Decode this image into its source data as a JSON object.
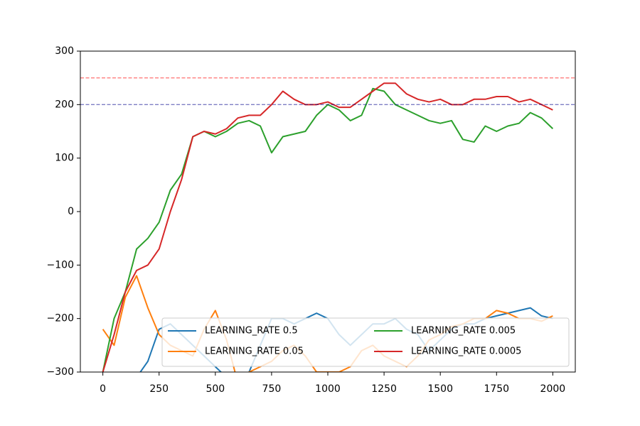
{
  "chart_data": {
    "type": "line",
    "x": [
      0,
      50,
      100,
      150,
      200,
      250,
      300,
      350,
      400,
      450,
      500,
      550,
      600,
      650,
      700,
      750,
      800,
      850,
      900,
      950,
      1000,
      1050,
      1100,
      1150,
      1200,
      1250,
      1300,
      1350,
      1400,
      1450,
      1500,
      1550,
      1600,
      1650,
      1700,
      1750,
      1800,
      1850,
      1900,
      1950,
      2000
    ],
    "series": [
      {
        "name": "LEARNING_RATE 0.5",
        "color": "#1f77b4",
        "values": [
          -320,
          -325,
          -330,
          -310,
          -280,
          -220,
          -210,
          -230,
          -250,
          -270,
          -290,
          -310,
          -320,
          -300,
          -250,
          -200,
          -200,
          -210,
          -200,
          -190,
          -200,
          -230,
          -250,
          -230,
          -210,
          -210,
          -200,
          -220,
          -230,
          -260,
          -240,
          -220,
          -210,
          -210,
          -200,
          -195,
          -190,
          -185,
          -180,
          -195,
          -200
        ]
      },
      {
        "name": "LEARNING_RATE 0.05",
        "color": "#ff7f0e",
        "values": [
          -220,
          -250,
          -160,
          -120,
          -180,
          -230,
          -250,
          -260,
          -270,
          -220,
          -185,
          -240,
          -320,
          -300,
          -290,
          -280,
          -260,
          -250,
          -270,
          -300,
          -300,
          -300,
          -290,
          -260,
          -250,
          -270,
          -280,
          -290,
          -270,
          -240,
          -230,
          -215,
          -210,
          -200,
          -200,
          -185,
          -190,
          -200,
          -200,
          -205,
          -195
        ]
      },
      {
        "name": "LEARNING_RATE 0.005",
        "color": "#2ca02c",
        "values": [
          -300,
          -200,
          -150,
          -70,
          -50,
          -20,
          40,
          70,
          140,
          150,
          140,
          150,
          165,
          170,
          160,
          110,
          140,
          145,
          150,
          180,
          200,
          190,
          170,
          180,
          230,
          225,
          200,
          190,
          180,
          170,
          165,
          170,
          135,
          130,
          160,
          150,
          160,
          165,
          185,
          175,
          155
        ]
      },
      {
        "name": "LEARNING_RATE 0.0005",
        "color": "#d62728",
        "values": [
          -300,
          -230,
          -150,
          -110,
          -100,
          -70,
          0,
          60,
          140,
          150,
          145,
          155,
          175,
          180,
          180,
          200,
          225,
          210,
          200,
          200,
          205,
          195,
          195,
          210,
          225,
          240,
          240,
          220,
          210,
          205,
          210,
          200,
          200,
          210,
          210,
          215,
          215,
          205,
          210,
          200,
          190
        ]
      }
    ],
    "hlines": [
      {
        "value": 250,
        "color": "#ff0000"
      },
      {
        "value": 200,
        "color": "#00008b"
      }
    ],
    "xlim": [
      -100,
      2100
    ],
    "xticks": [
      0,
      250,
      500,
      750,
      1000,
      1250,
      1500,
      1750,
      2000
    ],
    "ylim": [
      -300,
      300
    ],
    "yticks": [
      {
        "value": -300,
        "label": "−300"
      },
      {
        "value": -200,
        "label": "−200"
      },
      {
        "value": -100,
        "label": "−100"
      },
      0,
      100,
      200,
      300
    ],
    "legend": {
      "loc": "lower right",
      "ncol": 2
    }
  }
}
